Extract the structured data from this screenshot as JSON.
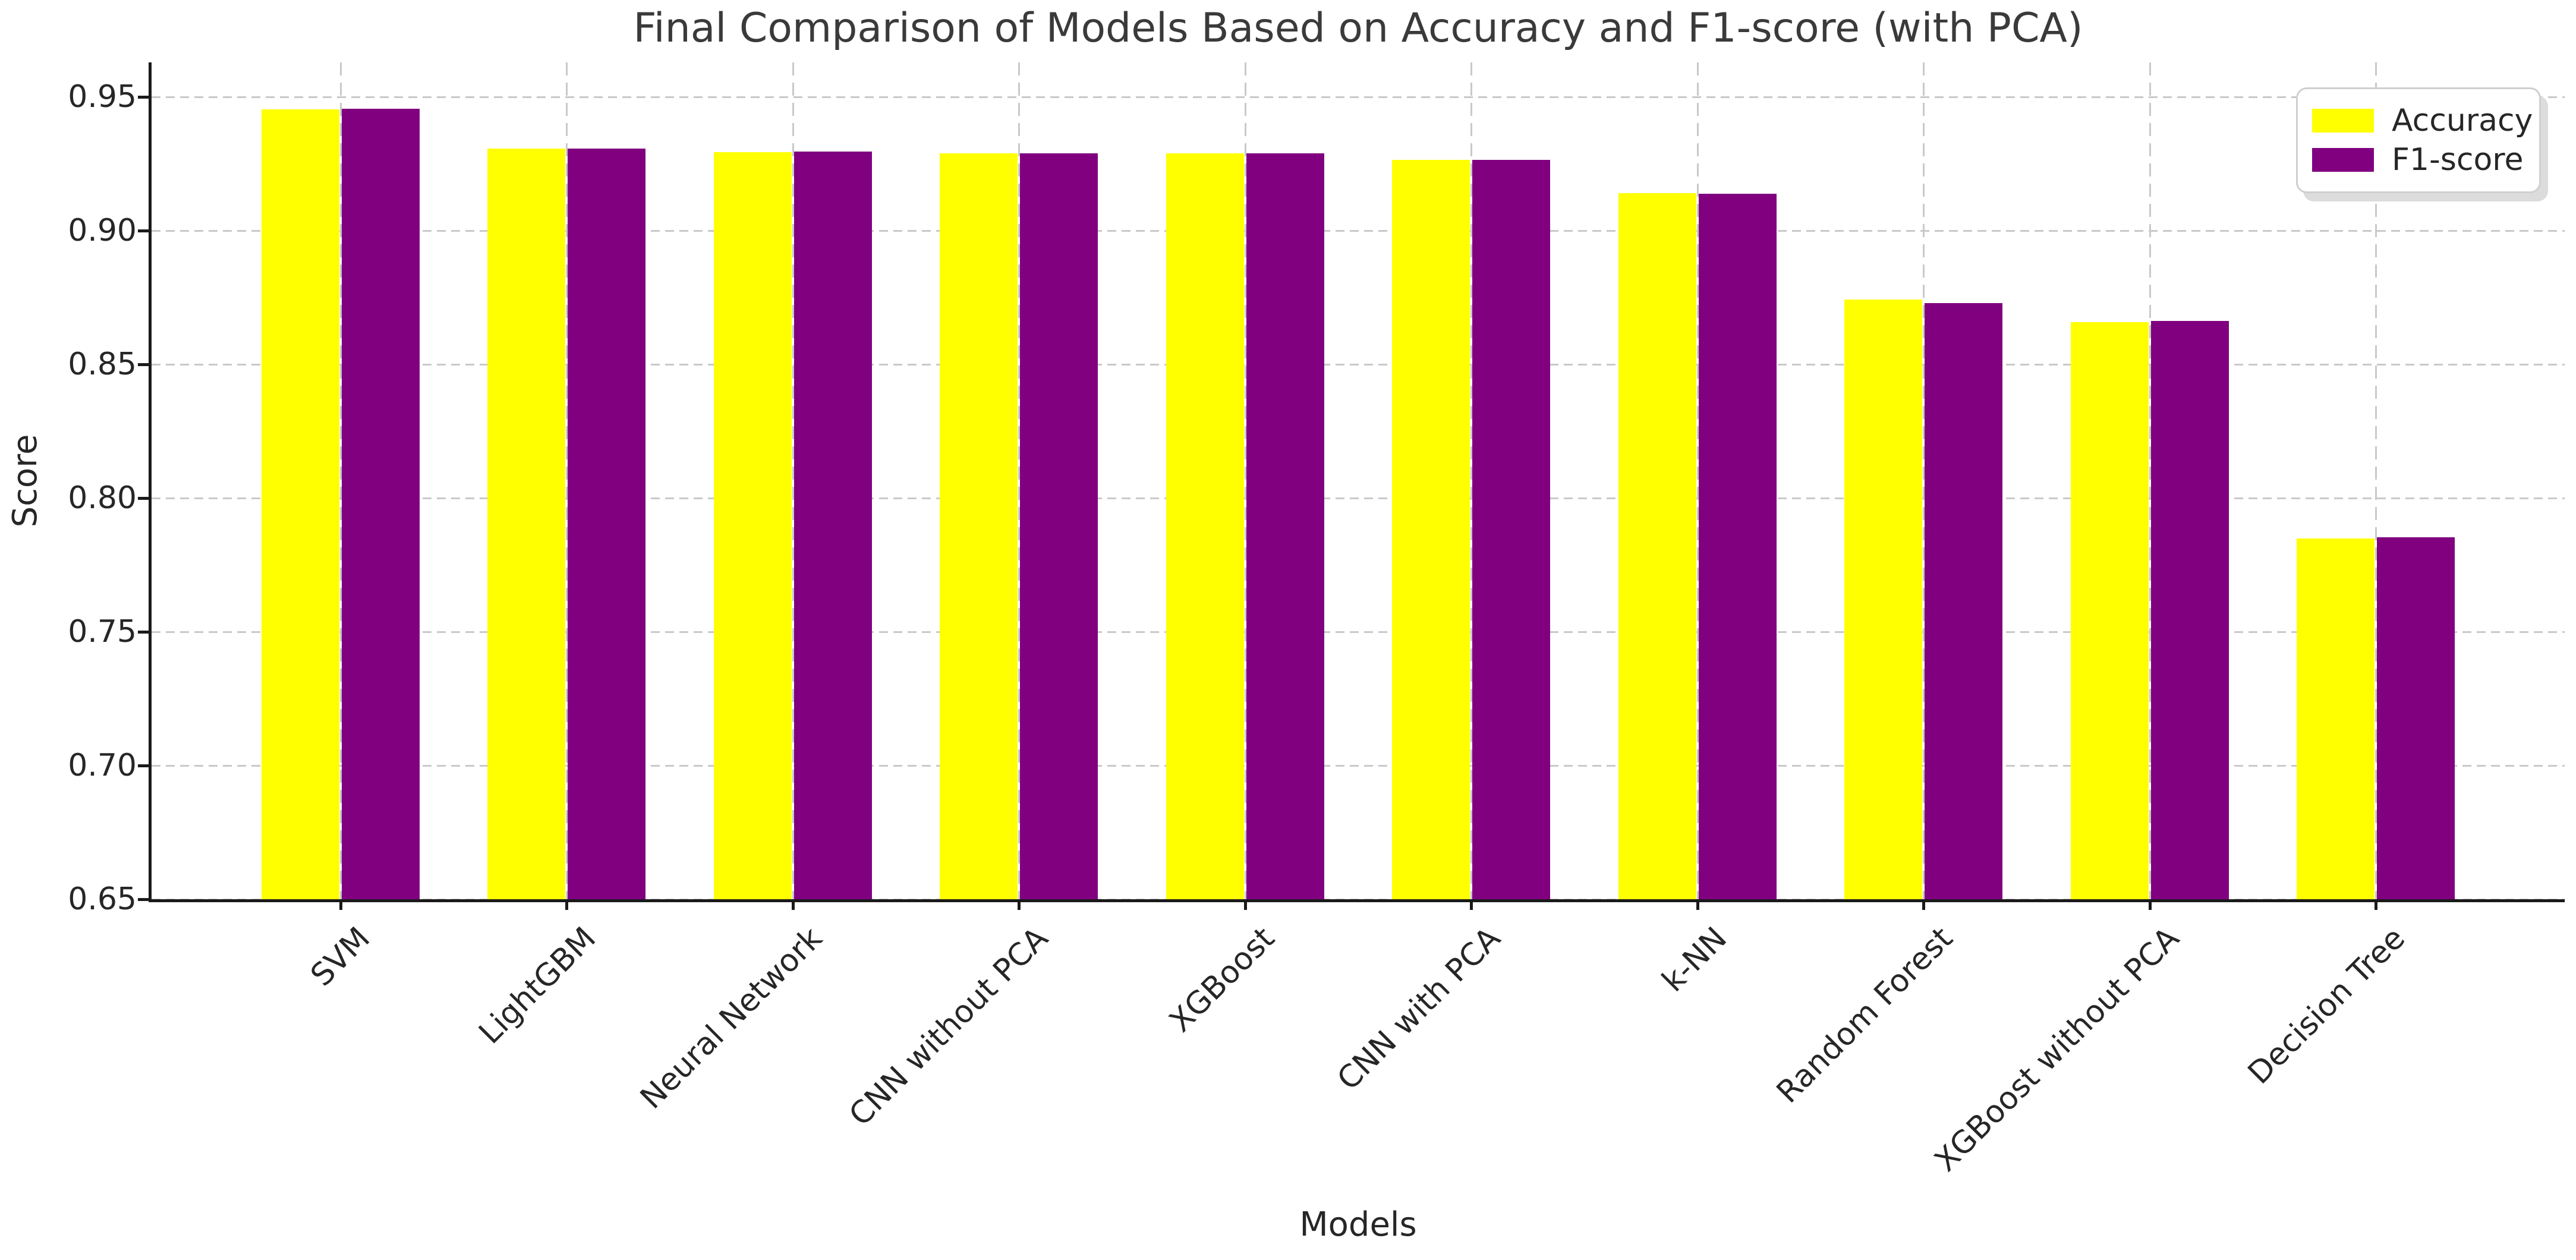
{
  "chart_data": {
    "type": "bar",
    "title": "Final Comparison of Models Based on Accuracy and F1-score (with PCA)",
    "xlabel": "Models",
    "ylabel": "Score",
    "categories": [
      "SVM",
      "LightGBM",
      "Neural Network",
      "CNN without PCA",
      "XGBoost",
      "CNN with PCA",
      "k-NN",
      "Random Forest",
      "XGBoost without PCA",
      "Decision Tree"
    ],
    "series": [
      {
        "name": "Accuracy",
        "color": "#ffff00",
        "values": [
          0.9455,
          0.9307,
          0.9295,
          0.9289,
          0.9289,
          0.9265,
          0.9142,
          0.8744,
          0.8658,
          0.7849
        ]
      },
      {
        "name": "F1-score",
        "color": "#800080",
        "values": [
          0.9456,
          0.9308,
          0.9297,
          0.929,
          0.929,
          0.9266,
          0.9138,
          0.8729,
          0.8662,
          0.7853
        ]
      }
    ],
    "ylim": [
      0.65,
      0.963
    ],
    "yticks": [
      0.65,
      0.7,
      0.75,
      0.8,
      0.85,
      0.9,
      0.95
    ],
    "ytick_labels": [
      "0.65",
      "0.70",
      "0.75",
      "0.80",
      "0.85",
      "0.90",
      "0.95"
    ],
    "bar_width": 0.35,
    "grid": true,
    "grid_style": "dashed",
    "legend_position": "upper right",
    "colors": {
      "accuracy": "#ffff00",
      "f1_score": "#800080",
      "grid": "#c9c9c9",
      "text": "#262626",
      "spine": "#1a1a1a",
      "background": "#ffffff"
    }
  }
}
